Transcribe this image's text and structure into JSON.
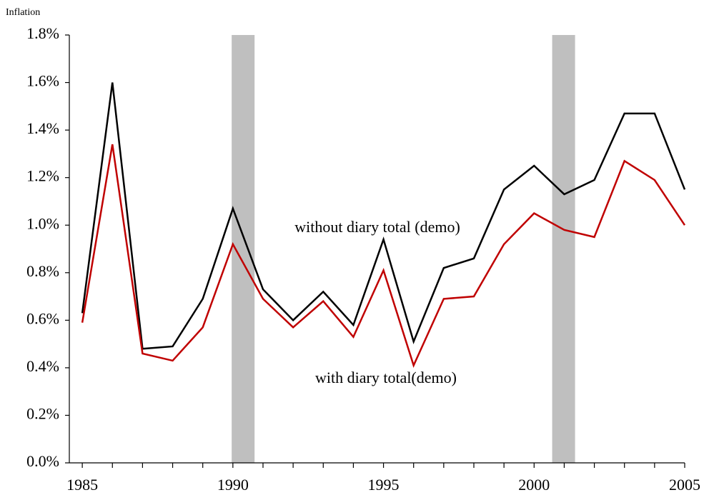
{
  "chart_data": {
    "type": "line",
    "y_label": "Inflation",
    "x": [
      1985,
      1986,
      1987,
      1988,
      1989,
      1990,
      1991,
      1992,
      1993,
      1994,
      1995,
      1996,
      1997,
      1998,
      1999,
      2000,
      2001,
      2002,
      2003,
      2004,
      2005
    ],
    "series": [
      {
        "name": "without diary total (demo)",
        "color": "#000000",
        "values": [
          0.63,
          1.6,
          0.48,
          0.49,
          0.69,
          1.07,
          0.73,
          0.6,
          0.72,
          0.58,
          0.94,
          0.51,
          0.82,
          0.86,
          1.15,
          1.25,
          1.13,
          1.19,
          1.47,
          1.47,
          1.15
        ]
      },
      {
        "name": "with diary total(demo)",
        "color": "#c00000",
        "values": [
          0.59,
          1.34,
          0.46,
          0.43,
          0.57,
          0.92,
          0.69,
          0.57,
          0.68,
          0.53,
          0.81,
          0.41,
          0.69,
          0.7,
          0.92,
          1.05,
          0.98,
          0.95,
          1.27,
          1.19,
          1.0
        ]
      }
    ],
    "shaded_regions": [
      [
        1989.96,
        1990.72
      ],
      [
        2000.6,
        2001.36
      ]
    ],
    "shade_color": "#bfbfbf",
    "xlim": [
      1984.57,
      2005
    ],
    "xticks": [
      1985,
      1990,
      1995,
      2000,
      2005
    ],
    "x_minor_ticks": [
      1985,
      1986,
      1987,
      1988,
      1989,
      1990,
      1991,
      1992,
      1993,
      1994,
      1995,
      1996,
      1997,
      1998,
      1999,
      2000,
      2001,
      2002,
      2003,
      2004,
      2005
    ],
    "ylim": [
      0,
      1.8
    ],
    "yticks": [
      {
        "value": 0,
        "label": "0.0%"
      },
      {
        "value": 0.2,
        "label": "0.2%"
      },
      {
        "value": 0.4,
        "label": "0.4%"
      },
      {
        "value": 0.6,
        "label": "0.6%"
      },
      {
        "value": 0.8,
        "label": "0.8%"
      },
      {
        "value": 1.0,
        "label": "1.0%"
      },
      {
        "value": 1.2,
        "label": "1.2%"
      },
      {
        "value": 1.4,
        "label": "1.4%"
      },
      {
        "value": 1.6,
        "label": "1.6%"
      },
      {
        "value": 1.8,
        "label": "1.8%"
      }
    ],
    "grid": false
  }
}
